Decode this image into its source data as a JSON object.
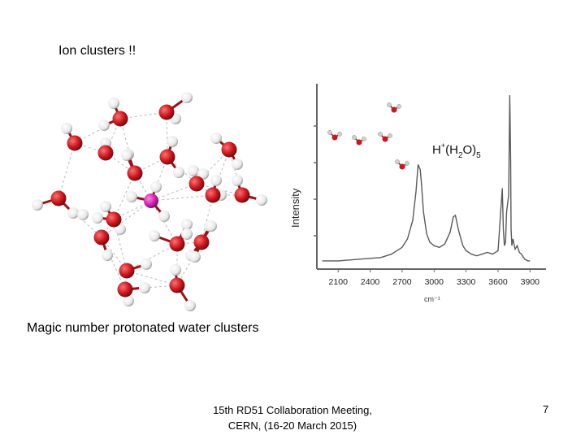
{
  "slide": {
    "title": "Ion clusters !!",
    "caption": "Magic number protonated water clusters",
    "footer_line1": "15th RD51 Collaboration Meeting,",
    "footer_line2": "CERN, (16-20 March 2015)",
    "page_number": "7"
  },
  "colors": {
    "oxygen": "#c8161d",
    "hydrogen": "#e8e8e8",
    "center_ion": "#d21fb0",
    "spectrum_line": "#5a5a5a"
  },
  "chart_data": {
    "type": "line",
    "title": "",
    "ylabel": "Intensity",
    "xlabel": "cm⁻¹",
    "annotation": {
      "prefix": "H",
      "sup": "+",
      "mid": "(H",
      "sub": "2",
      "suffix": "O)",
      "count": "5"
    },
    "xlim": [
      1900,
      4050
    ],
    "xticks": [
      "2100",
      "2400",
      "2700",
      "3000",
      "3300",
      "3600",
      "3900"
    ],
    "xtick_values": [
      2100,
      2400,
      2700,
      3000,
      3300,
      3600,
      3900
    ],
    "ylim": [
      0,
      1
    ],
    "series": [
      {
        "x": [
          1950,
          2100,
          2300,
          2500,
          2600,
          2700,
          2750,
          2800,
          2830,
          2850,
          2870,
          2880,
          2900,
          2930,
          2960,
          3000,
          3050,
          3100,
          3150,
          3180,
          3200,
          3230,
          3270,
          3300,
          3350,
          3400,
          3450,
          3500,
          3550,
          3600,
          3640,
          3650,
          3660,
          3670,
          3680,
          3700,
          3710,
          3718,
          3722,
          3730,
          3740,
          3760,
          3780,
          3800,
          3820,
          3850,
          3880,
          3900
        ],
        "y": [
          0.01,
          0.01,
          0.02,
          0.03,
          0.05,
          0.09,
          0.14,
          0.25,
          0.42,
          0.58,
          0.55,
          0.48,
          0.3,
          0.17,
          0.12,
          0.1,
          0.09,
          0.11,
          0.18,
          0.27,
          0.28,
          0.19,
          0.1,
          0.07,
          0.05,
          0.04,
          0.05,
          0.06,
          0.05,
          0.07,
          0.44,
          0.2,
          0.1,
          0.12,
          0.3,
          0.4,
          0.99,
          0.6,
          0.2,
          0.1,
          0.14,
          0.08,
          0.1,
          0.06,
          0.05,
          0.02,
          0.01,
          0.01
        ]
      }
    ]
  }
}
